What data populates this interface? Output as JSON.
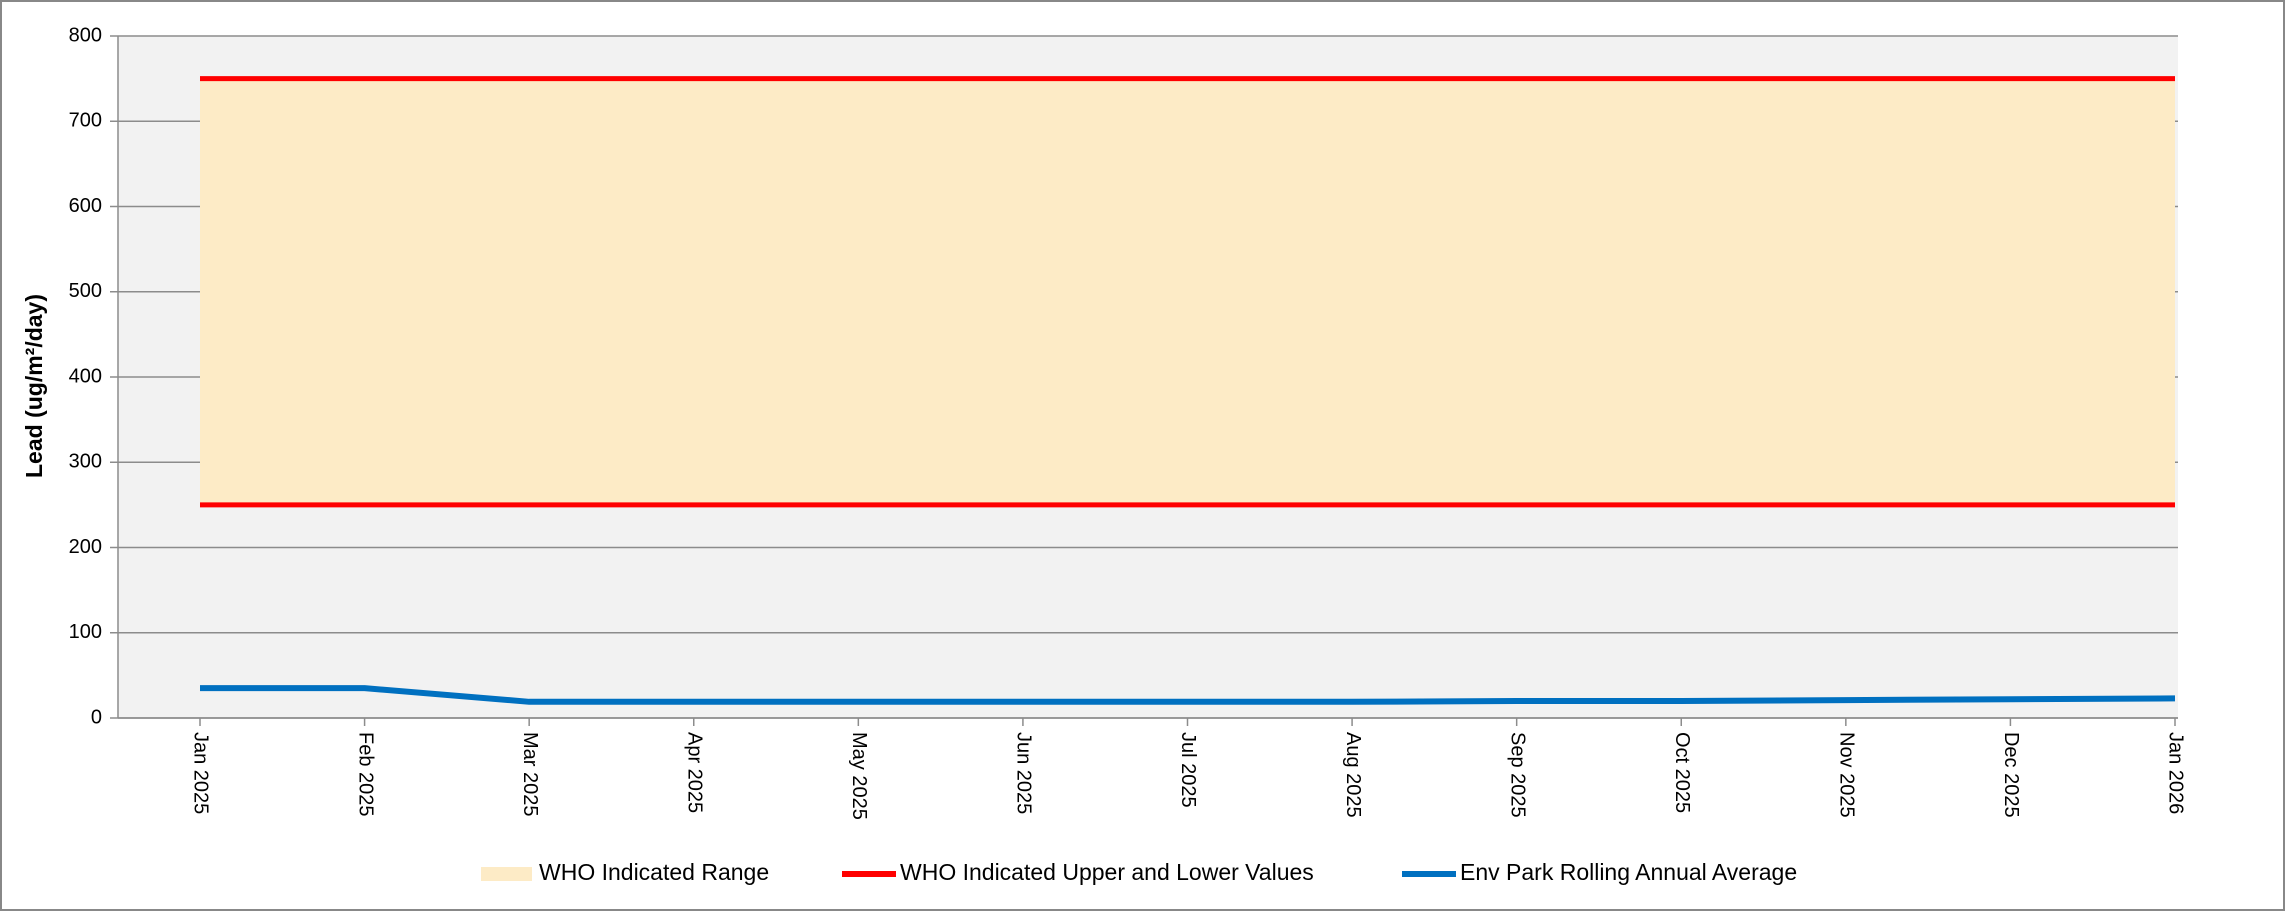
{
  "chart_data": {
    "type": "line",
    "y_label": "Lead (ug/m²/day)",
    "categories": [
      "Jan 2025",
      "Feb 2025",
      "Mar 2025",
      "Apr 2025",
      "May 2025",
      "Jun 2025",
      "Jul 2025",
      "Aug 2025",
      "Sep 2025",
      "Oct 2025",
      "Nov 2025",
      "Dec 2025",
      "Jan 2026"
    ],
    "series": [
      {
        "name": "WHO Indicated Range",
        "kind": "range",
        "color": "#fdebc6",
        "values": [
          750,
          750,
          750,
          750,
          750,
          750,
          750,
          750,
          750,
          750,
          750,
          750,
          750
        ],
        "lower_values": [
          250,
          250,
          250,
          250,
          250,
          250,
          250,
          250,
          250,
          250,
          250,
          250,
          250
        ]
      },
      {
        "name": "WHO Indicated Upper and Lower Values",
        "kind": "bounds",
        "color": "#ff0000",
        "values": [
          250,
          250,
          250,
          250,
          250,
          250,
          250,
          250,
          250,
          250,
          250,
          250,
          250
        ],
        "upper_values": [
          750,
          750,
          750,
          750,
          750,
          750,
          750,
          750,
          750,
          750,
          750,
          750,
          750
        ]
      },
      {
        "name": "Env Park Rolling Annual Average",
        "kind": "line",
        "color": "#0070c0",
        "values": [
          35,
          35,
          19,
          19,
          19,
          19,
          19,
          19,
          20,
          20,
          21,
          22,
          23
        ]
      }
    ],
    "ylim": [
      0,
      800
    ],
    "yticks": [
      0,
      100,
      200,
      300,
      400,
      500,
      600,
      700,
      800
    ],
    "grid": true,
    "legend": "bottom"
  }
}
